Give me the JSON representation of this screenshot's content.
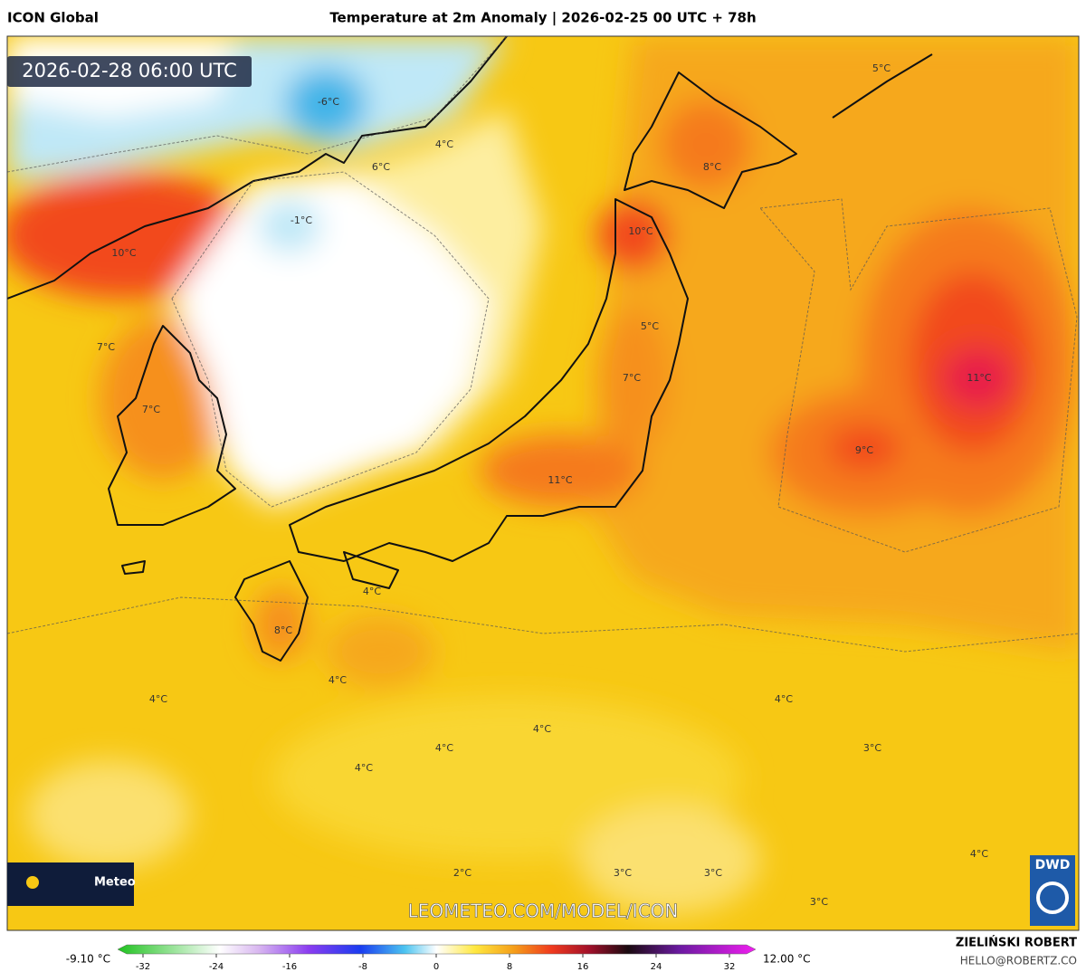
{
  "header": {
    "model": "ICON Global",
    "title": "Temperature at 2m Anomaly | 2026-02-25 00 UTC + 78h"
  },
  "map": {
    "valid_time": "2026-02-28 06:00 UTC",
    "labels": [
      "-6°C",
      "-1°C",
      "6°C",
      "4°C",
      "5°C",
      "8°C",
      "10°C",
      "10°C",
      "7°C",
      "5°C",
      "7°C",
      "7°C",
      "11°C",
      "9°C",
      "11°C",
      "4°C",
      "8°C",
      "4°C",
      "4°C",
      "4°C",
      "4°C",
      "4°C",
      "3°C",
      "4°C",
      "4°C",
      "2°C",
      "3°C",
      "3°C",
      "3°C"
    ],
    "watermark": "LEOMETEO.COM/MODEL/ICON"
  },
  "legend": {
    "min_label": "-9.10 °C",
    "max_label": "12.00 °C",
    "ticks": [
      -32,
      -24,
      -16,
      -8,
      0,
      8,
      16,
      24,
      32
    ]
  },
  "credits": {
    "author": "ZIELIŃSKI ROBERT",
    "contact": "HELLO@ROBERTZ.CO",
    "logo": "Meteo",
    "agency": "DWD"
  }
}
